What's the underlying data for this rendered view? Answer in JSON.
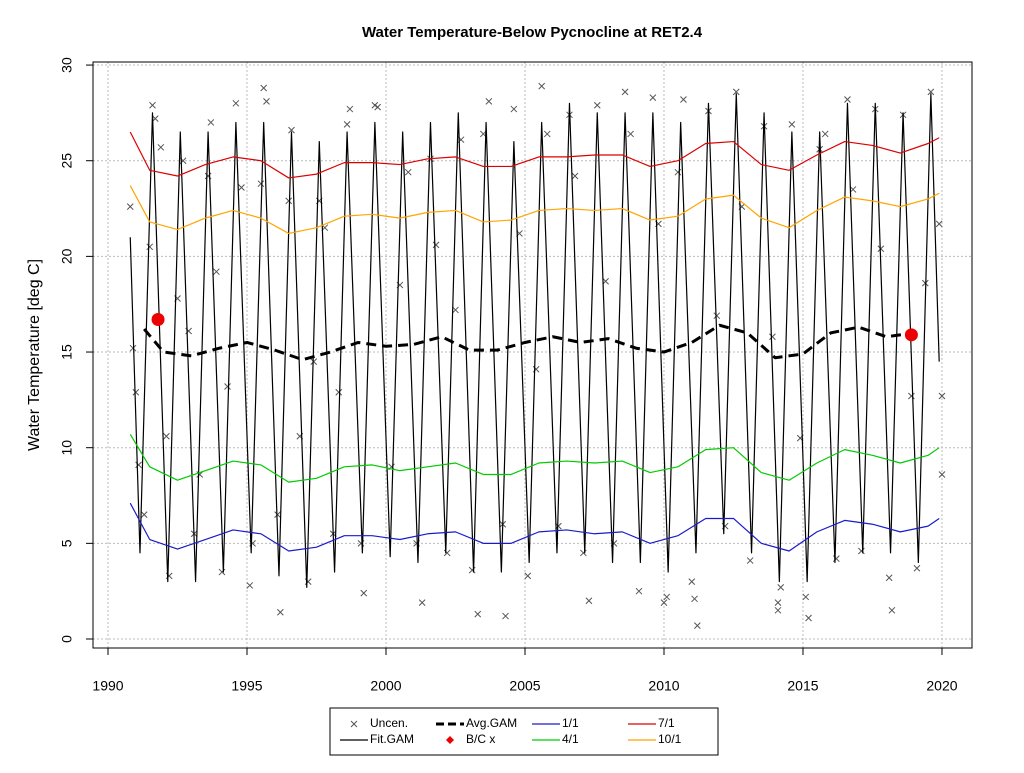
{
  "chart_data": {
    "type": "line",
    "title": "Water Temperature-Below Pycnocline at RET2.4",
    "y_label": "Water Temperature [deg C]",
    "xlim": [
      1989.46,
      2021.08
    ],
    "ylim": [
      -0.47,
      30.16
    ],
    "xticks": [
      1990,
      1995,
      2000,
      2005,
      2010,
      2015,
      2020
    ],
    "yticks": [
      0,
      5,
      10,
      15,
      20,
      25,
      30
    ],
    "grid": true,
    "legend": "bottom",
    "series": [
      {
        "name": "Uncen.",
        "marker": "x",
        "color": "#555555",
        "x": [
          1990.8,
          1990.9,
          1991.0,
          1991.1,
          1991.3,
          1991.5,
          1991.6,
          1991.7,
          1991.9,
          1992.1,
          1992.2,
          1992.5,
          1992.7,
          1992.9,
          1993.1,
          1993.3,
          1993.6,
          1993.7,
          1993.9,
          1994.1,
          1994.3,
          1994.6,
          1994.8,
          1995.1,
          1995.2,
          1995.5,
          1995.6,
          1995.7,
          1996.1,
          1996.2,
          1996.5,
          1996.6,
          1996.9,
          1997.2,
          1997.4,
          1997.6,
          1997.8,
          1998.1,
          1998.3,
          1998.6,
          1998.7,
          1999.1,
          1999.2,
          1999.6,
          1999.7,
          2000.2,
          2000.5,
          2000.8,
          2001.1,
          2001.3,
          2001.6,
          2001.8,
          2002.2,
          2002.5,
          2002.7,
          2003.1,
          2003.3,
          2003.5,
          2003.7,
          2004.2,
          2004.3,
          2004.6,
          2004.8,
          2005.1,
          2005.4,
          2005.6,
          2005.8,
          2006.2,
          2006.6,
          2006.8,
          2007.1,
          2007.3,
          2007.6,
          2007.9,
          2008.2,
          2008.6,
          2008.8,
          2009.1,
          2009.6,
          2009.8,
          2010.1,
          2010.0,
          2010.5,
          2010.7,
          2011.0,
          2011.2,
          2011.1,
          2011.6,
          2011.9,
          2012.2,
          2012.6,
          2012.8,
          2013.1,
          2013.6,
          2013.9,
          2014.1,
          2014.1,
          2014.2,
          2014.6,
          2014.9,
          2015.1,
          2015.2,
          2015.6,
          2015.8,
          2016.2,
          2016.6,
          2016.8,
          2017.1,
          2017.6,
          2017.8,
          2018.1,
          2018.2,
          2018.6,
          2018.9,
          2019.1,
          2019.4,
          2019.6,
          2019.9,
          2020.0,
          2020.0
        ],
        "values": [
          22.6,
          15.2,
          12.9,
          9.1,
          6.5,
          20.5,
          27.9,
          27.2,
          25.7,
          10.6,
          3.3,
          17.8,
          25.0,
          16.1,
          5.5,
          8.6,
          24.2,
          27.0,
          19.2,
          3.5,
          13.2,
          28.0,
          23.6,
          2.8,
          5.0,
          23.8,
          28.8,
          28.1,
          6.5,
          1.4,
          22.9,
          26.6,
          10.6,
          3.0,
          14.5,
          22.9,
          21.5,
          5.5,
          12.9,
          26.9,
          27.7,
          5.0,
          2.4,
          27.9,
          27.8,
          9.0,
          18.5,
          24.4,
          5.0,
          1.9,
          25.1,
          20.6,
          4.5,
          17.2,
          26.1,
          3.6,
          1.3,
          26.4,
          28.1,
          6.0,
          1.2,
          27.7,
          21.2,
          3.3,
          14.1,
          28.9,
          26.4,
          5.9,
          27.4,
          24.2,
          4.5,
          2.0,
          27.9,
          18.7,
          5.0,
          28.6,
          26.4,
          2.5,
          28.3,
          21.7,
          2.2,
          1.9,
          24.4,
          28.2,
          3.0,
          0.7,
          2.1,
          27.6,
          16.9,
          5.9,
          28.6,
          22.6,
          4.1,
          26.8,
          15.8,
          1.9,
          1.5,
          2.7,
          26.9,
          10.5,
          2.2,
          1.1,
          25.6,
          26.4,
          4.2,
          28.2,
          23.5,
          4.6,
          27.7,
          20.4,
          3.2,
          1.5,
          27.4,
          12.7,
          3.7,
          18.6,
          28.6,
          21.7,
          12.7,
          8.6
        ]
      },
      {
        "name": "Fit.GAM",
        "marker": "line",
        "color": "#000000",
        "x": [
          1990.8,
          1991.15,
          1991.6,
          1992.15,
          1992.6,
          1993.15,
          1993.6,
          1994.15,
          1994.6,
          1995.15,
          1995.6,
          1996.15,
          1996.6,
          1997.15,
          1997.6,
          1998.15,
          1998.6,
          1999.15,
          1999.6,
          2000.15,
          2000.6,
          2001.15,
          2001.6,
          2002.15,
          2002.6,
          2003.15,
          2003.6,
          2004.15,
          2004.6,
          2005.15,
          2005.6,
          2006.15,
          2006.6,
          2007.15,
          2007.6,
          2008.15,
          2008.6,
          2009.15,
          2009.6,
          2010.15,
          2010.6,
          2011.15,
          2011.6,
          2012.15,
          2012.6,
          2013.15,
          2013.6,
          2014.15,
          2014.6,
          2015.15,
          2015.6,
          2016.15,
          2016.6,
          2017.15,
          2017.6,
          2018.15,
          2018.6,
          2019.15,
          2019.6,
          2019.9
        ],
        "values": [
          21.0,
          4.5,
          27.5,
          3.0,
          26.5,
          3.0,
          26.5,
          3.5,
          27.0,
          4.5,
          27.0,
          3.3,
          26.5,
          2.7,
          26.0,
          3.5,
          26.5,
          4.5,
          27.0,
          4.3,
          26.5,
          4.0,
          27.0,
          4.5,
          27.5,
          3.5,
          27.0,
          3.5,
          26.0,
          4.0,
          27.0,
          4.5,
          28.0,
          4.5,
          27.5,
          4.0,
          27.5,
          4.0,
          27.5,
          3.5,
          27.0,
          4.5,
          28.0,
          5.5,
          28.5,
          4.5,
          27.5,
          3.0,
          26.5,
          3.0,
          26.5,
          4.0,
          28.0,
          4.5,
          28.0,
          4.5,
          27.5,
          4.0,
          28.5,
          14.5
        ]
      },
      {
        "name": "Avg.GAM",
        "marker": "dashed",
        "color": "#000000",
        "x": [
          1991.3,
          1992,
          1993,
          1994,
          1995,
          1996,
          1997,
          1998,
          1999,
          2000,
          2001,
          2002,
          2003,
          2004,
          2005,
          2006,
          2007,
          2008,
          2009,
          2010,
          2011,
          2012,
          2013,
          2014,
          2015,
          2016,
          2017,
          2018,
          2019
        ],
        "values": [
          16.2,
          15.0,
          14.8,
          15.2,
          15.5,
          15.1,
          14.6,
          15.0,
          15.5,
          15.3,
          15.4,
          15.8,
          15.1,
          15.1,
          15.5,
          15.8,
          15.5,
          15.7,
          15.2,
          15.0,
          15.5,
          16.4,
          16.0,
          14.7,
          14.9,
          16.0,
          16.3,
          15.8,
          16.0
        ]
      },
      {
        "name": "B/C x",
        "marker": "dot",
        "color": "#ee0000",
        "x": [
          1991.8,
          2018.9
        ],
        "values": [
          16.7,
          15.9
        ]
      },
      {
        "name": "1/1",
        "marker": "line",
        "color": "#1a1acc",
        "x": [
          1990.8,
          1991.5,
          1992.5,
          1993.5,
          1994.5,
          1995.5,
          1996.5,
          1997.5,
          1998.5,
          1999.5,
          2000.5,
          2001.5,
          2002.5,
          2003.5,
          2004.5,
          2005.5,
          2006.5,
          2007.5,
          2008.5,
          2009.5,
          2010.5,
          2011.5,
          2012.5,
          2013.5,
          2014.5,
          2015.5,
          2016.5,
          2017.5,
          2018.5,
          2019.5,
          2019.9
        ],
        "values": [
          7.1,
          5.2,
          4.7,
          5.2,
          5.7,
          5.5,
          4.6,
          4.8,
          5.4,
          5.4,
          5.2,
          5.5,
          5.6,
          5.0,
          5.0,
          5.6,
          5.7,
          5.5,
          5.6,
          5.0,
          5.4,
          6.3,
          6.3,
          5.0,
          4.6,
          5.6,
          6.2,
          6.0,
          5.6,
          5.9,
          6.3
        ]
      },
      {
        "name": "4/1",
        "marker": "line",
        "color": "#00cc00",
        "x": [
          1990.8,
          1991.5,
          1992.5,
          1993.5,
          1994.5,
          1995.5,
          1996.5,
          1997.5,
          1998.5,
          1999.5,
          2000.5,
          2001.5,
          2002.5,
          2003.5,
          2004.5,
          2005.5,
          2006.5,
          2007.5,
          2008.5,
          2009.5,
          2010.5,
          2011.5,
          2012.5,
          2013.5,
          2014.5,
          2015.5,
          2016.5,
          2017.5,
          2018.5,
          2019.5,
          2019.9
        ],
        "values": [
          10.7,
          9.0,
          8.3,
          8.8,
          9.3,
          9.1,
          8.2,
          8.4,
          9.0,
          9.1,
          8.8,
          9.0,
          9.2,
          8.6,
          8.6,
          9.2,
          9.3,
          9.2,
          9.3,
          8.7,
          9.0,
          9.9,
          10.0,
          8.7,
          8.3,
          9.2,
          9.9,
          9.6,
          9.2,
          9.6,
          10.0
        ]
      },
      {
        "name": "7/1",
        "marker": "line",
        "color": "#dd0000",
        "x": [
          1990.8,
          1991.5,
          1992.5,
          1993.5,
          1994.5,
          1995.5,
          1996.5,
          1997.5,
          1998.5,
          1999.5,
          2000.5,
          2001.5,
          2002.5,
          2003.5,
          2004.5,
          2005.5,
          2006.5,
          2007.5,
          2008.5,
          2009.5,
          2010.5,
          2011.5,
          2012.5,
          2013.5,
          2014.5,
          2015.5,
          2016.5,
          2017.5,
          2018.5,
          2019.5,
          2019.9
        ],
        "values": [
          26.5,
          24.5,
          24.2,
          24.8,
          25.2,
          25.0,
          24.1,
          24.3,
          24.9,
          24.9,
          24.8,
          25.1,
          25.2,
          24.7,
          24.7,
          25.2,
          25.2,
          25.3,
          25.3,
          24.7,
          25.0,
          25.9,
          26.0,
          24.8,
          24.5,
          25.3,
          26.0,
          25.8,
          25.4,
          25.9,
          26.2
        ]
      },
      {
        "name": "10/1",
        "marker": "line",
        "color": "#ffa500",
        "x": [
          1990.8,
          1991.5,
          1992.5,
          1993.5,
          1994.5,
          1995.5,
          1996.5,
          1997.5,
          1998.5,
          1999.5,
          2000.5,
          2001.5,
          2002.5,
          2003.5,
          2004.5,
          2005.5,
          2006.5,
          2007.5,
          2008.5,
          2009.5,
          2010.5,
          2011.5,
          2012.5,
          2013.5,
          2014.5,
          2015.5,
          2016.5,
          2017.5,
          2018.5,
          2019.5,
          2019.9
        ],
        "values": [
          23.7,
          21.8,
          21.4,
          22.0,
          22.4,
          22.0,
          21.2,
          21.5,
          22.1,
          22.2,
          22.0,
          22.3,
          22.4,
          21.8,
          21.9,
          22.4,
          22.5,
          22.4,
          22.5,
          21.9,
          22.1,
          23.0,
          23.2,
          22.0,
          21.5,
          22.4,
          23.1,
          22.9,
          22.6,
          23.0,
          23.3
        ]
      }
    ]
  }
}
